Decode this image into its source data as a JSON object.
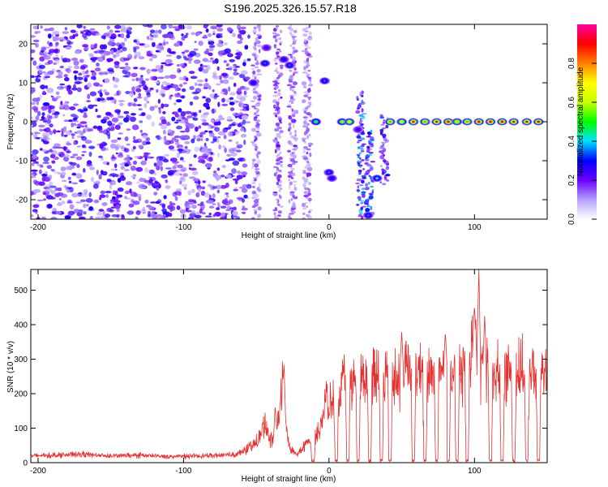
{
  "chart_data": [
    {
      "type": "heatmap",
      "title": "S196.2025.326.15.57.R18",
      "xlabel": "Height of straight line (km)",
      "ylabel": "Frequency (Hz)",
      "xlim": [
        -205,
        150
      ],
      "ylim": [
        -25,
        25
      ],
      "xticks": [
        -200,
        -100,
        0,
        100
      ],
      "yticks": [
        -20,
        -10,
        0,
        10,
        20
      ],
      "colorbar": {
        "label": "Normalized spectral amplitude",
        "range": [
          0,
          1
        ],
        "ticks": [
          "0.0",
          "0.2",
          "0.4",
          "0.6",
          "0.8"
        ],
        "tick_values": [
          0.0,
          0.2,
          0.4,
          0.6,
          0.8
        ],
        "colors": [
          "#ffffff",
          "#b4a0ff",
          "#6a00ff",
          "#0000ff",
          "#00e0ff",
          "#00ff00",
          "#c8ff00",
          "#ffff00",
          "#ff8000",
          "#ff0000",
          "#ff00a0"
        ]
      },
      "noise_region": {
        "x_range": [
          -205,
          -55
        ],
        "level": 0.15
      },
      "streaks": [
        {
          "x": -50,
          "y_range": [
            -25,
            25
          ],
          "level": 0.12
        },
        {
          "x": -35,
          "y_range": [
            -25,
            25
          ],
          "level": 0.14
        },
        {
          "x": -25,
          "y_range": [
            -25,
            25
          ],
          "level": 0.12
        },
        {
          "x": -15,
          "y_range": [
            -25,
            25
          ],
          "level": 0.12
        },
        {
          "x": 22,
          "y_range": [
            -25,
            8
          ],
          "level": 0.25
        },
        {
          "x": 28,
          "y_range": [
            -24,
            -2
          ],
          "level": 0.25
        },
        {
          "x": 38,
          "y_range": [
            -16,
            2
          ],
          "level": 0.2
        }
      ],
      "features": [
        {
          "x": -52,
          "y": 10,
          "amplitude": 0.3
        },
        {
          "x": -44,
          "y": 15,
          "amplitude": 0.35
        },
        {
          "x": -43,
          "y": 19,
          "amplitude": 0.25
        },
        {
          "x": -31,
          "y": 16,
          "amplitude": 0.3
        },
        {
          "x": -27,
          "y": 14.5,
          "amplitude": 0.35
        },
        {
          "x": -9,
          "y": 0,
          "amplitude": 0.5
        },
        {
          "x": -3,
          "y": 10.5,
          "amplitude": 0.35
        },
        {
          "x": 0,
          "y": -13,
          "amplitude": 0.35
        },
        {
          "x": 2,
          "y": -14.5,
          "amplitude": 0.3
        },
        {
          "x": 9,
          "y": 0,
          "amplitude": 0.6
        },
        {
          "x": 14,
          "y": 0,
          "amplitude": 0.7
        },
        {
          "x": 20,
          "y": -2,
          "amplitude": 0.25
        },
        {
          "x": 27,
          "y": -24,
          "amplitude": 0.35
        },
        {
          "x": 33,
          "y": -14.5,
          "amplitude": 0.4
        },
        {
          "x": 42,
          "y": 0,
          "amplitude": 0.8
        },
        {
          "x": 50,
          "y": 0,
          "amplitude": 0.7
        },
        {
          "x": 58,
          "y": 0,
          "amplitude": 0.9
        },
        {
          "x": 66,
          "y": 0,
          "amplitude": 0.8
        },
        {
          "x": 74,
          "y": 0,
          "amplitude": 0.9
        },
        {
          "x": 82,
          "y": 0,
          "amplitude": 0.95
        },
        {
          "x": 88,
          "y": 0,
          "amplitude": 0.75
        },
        {
          "x": 95,
          "y": 0,
          "amplitude": 0.8
        },
        {
          "x": 103,
          "y": 0,
          "amplitude": 0.95
        },
        {
          "x": 111,
          "y": 0,
          "amplitude": 0.95
        },
        {
          "x": 119,
          "y": 0,
          "amplitude": 0.95
        },
        {
          "x": 127,
          "y": 0,
          "amplitude": 0.9
        },
        {
          "x": 136,
          "y": 0,
          "amplitude": 0.9
        },
        {
          "x": 144,
          "y": 0,
          "amplitude": 0.95
        }
      ]
    },
    {
      "type": "line",
      "title": "",
      "xlabel": "Height of straight line (km)",
      "ylabel": "SNR (10 * v/v)",
      "xlim": [
        -205,
        150
      ],
      "ylim": [
        0,
        560
      ],
      "xticks": [
        -200,
        -100,
        0,
        100
      ],
      "yticks": [
        0,
        100,
        200,
        300,
        400,
        500
      ],
      "color": "#e83030",
      "series": [
        {
          "name": "SNR",
          "x": [
            -205,
            -190,
            -170,
            -150,
            -130,
            -110,
            -90,
            -75,
            -65,
            -60,
            -55,
            -50,
            -47,
            -44,
            -42,
            -40,
            -38,
            -36,
            -34,
            -32,
            -30,
            -28,
            -26,
            -24,
            -22,
            -20,
            -18,
            -16,
            -14,
            -12,
            -10,
            -8,
            -6,
            -4,
            -2,
            0,
            2,
            4,
            6,
            8,
            10,
            12,
            14,
            16,
            18,
            20,
            22,
            24,
            26,
            28,
            30,
            32,
            34,
            36,
            38,
            40,
            45,
            50,
            55,
            60,
            65,
            70,
            75,
            80,
            85,
            90,
            95,
            98,
            100,
            102,
            104,
            106,
            110,
            115,
            120,
            125,
            130,
            135,
            140,
            145,
            150
          ],
          "values": [
            20,
            22,
            25,
            20,
            22,
            18,
            20,
            22,
            25,
            30,
            45,
            60,
            80,
            120,
            90,
            70,
            60,
            90,
            150,
            220,
            130,
            60,
            40,
            30,
            25,
            35,
            45,
            55,
            65,
            60,
            70,
            80,
            120,
            150,
            190,
            160,
            180,
            200,
            190,
            220,
            230,
            240,
            250,
            230,
            245,
            255,
            260,
            240,
            265,
            270,
            255,
            260,
            275,
            265,
            270,
            260,
            275,
            268,
            272,
            265,
            280,
            270,
            268,
            275,
            270,
            265,
            290,
            320,
            360,
            340,
            300,
            280,
            270,
            275,
            268,
            272,
            265,
            270,
            275,
            265,
            270
          ]
        }
      ],
      "dropout_x": [
        -11,
        5,
        13,
        20,
        28,
        36,
        42,
        50,
        58,
        66,
        74,
        82,
        88,
        95,
        103,
        111,
        119,
        127,
        136,
        144
      ],
      "spikes": [
        {
          "x": -37,
          "value": 165
        },
        {
          "x": -31,
          "value": 285
        },
        {
          "x": 50,
          "value": 380
        },
        {
          "x": 80,
          "value": 380
        },
        {
          "x": 100,
          "value": 455
        },
        {
          "x": 103,
          "value": 560
        },
        {
          "x": 107,
          "value": 430
        }
      ]
    }
  ]
}
